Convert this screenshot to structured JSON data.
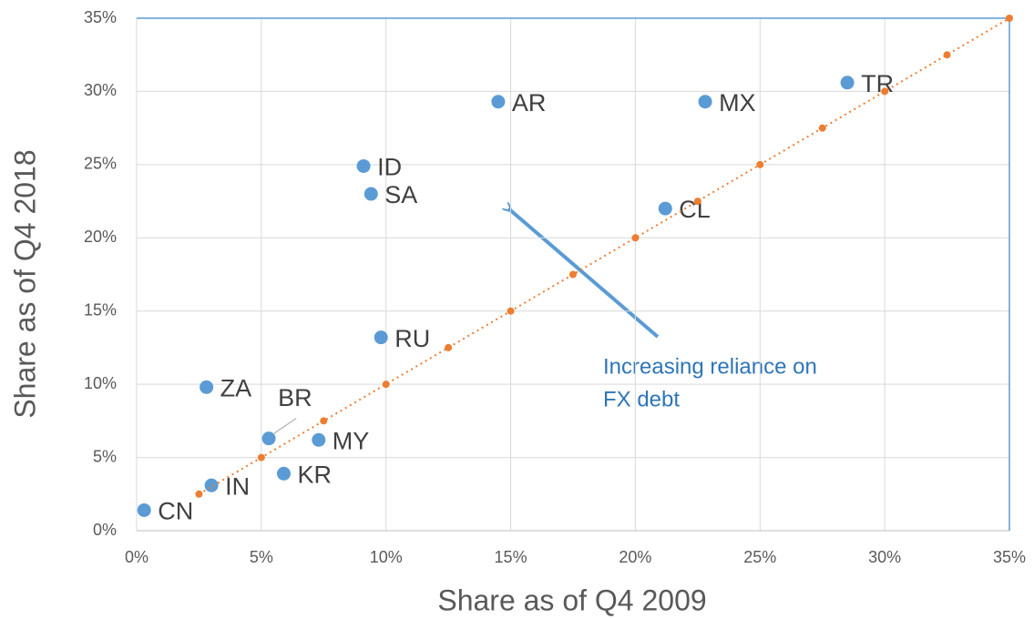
{
  "chart_data": {
    "type": "scatter",
    "xlabel": "Share as of Q4 2009",
    "ylabel": "Share as of Q4 2018",
    "xlim": [
      0,
      35
    ],
    "ylim": [
      0,
      35
    ],
    "xticks": [
      {
        "value": 0,
        "label": "0%"
      },
      {
        "value": 5,
        "label": "5%"
      },
      {
        "value": 10,
        "label": "10%"
      },
      {
        "value": 15,
        "label": "15%"
      },
      {
        "value": 20,
        "label": "20%"
      },
      {
        "value": 25,
        "label": "25%"
      },
      {
        "value": 30,
        "label": "30%"
      },
      {
        "value": 35,
        "label": "35%"
      }
    ],
    "yticks": [
      {
        "value": 0,
        "label": "0%"
      },
      {
        "value": 5,
        "label": "5%"
      },
      {
        "value": 10,
        "label": "10%"
      },
      {
        "value": 15,
        "label": "15%"
      },
      {
        "value": 20,
        "label": "20%"
      },
      {
        "value": 25,
        "label": "25%"
      },
      {
        "value": 30,
        "label": "30%"
      },
      {
        "value": 35,
        "label": "35%"
      }
    ],
    "grid": true,
    "series": [
      {
        "color": "#5b9bd5",
        "labels": [
          "CN",
          "IN",
          "ZA",
          "BR",
          "KR",
          "MY",
          "RU",
          "ID",
          "SA",
          "AR",
          "MX",
          "CL",
          "TR"
        ],
        "x": [
          0.3,
          3.0,
          2.8,
          5.3,
          5.9,
          7.3,
          9.8,
          9.1,
          9.4,
          14.5,
          22.8,
          21.2,
          28.5
        ],
        "values": [
          1.4,
          3.1,
          9.8,
          6.3,
          3.9,
          6.2,
          13.2,
          24.9,
          23.0,
          29.3,
          29.3,
          22.0,
          30.6
        ]
      },
      {
        "color": "#ed7d31",
        "line": "dotted",
        "x": [
          2.5,
          5,
          7.5,
          10,
          12.5,
          15,
          17.5,
          20,
          22.5,
          25,
          27.5,
          30,
          32.5,
          35
        ],
        "values": [
          2.5,
          5,
          7.5,
          10,
          12.5,
          15,
          17.5,
          20,
          22.5,
          25,
          27.5,
          30,
          32.5,
          35
        ]
      }
    ],
    "annotation": [
      "Increasing reliance on",
      "FX debt"
    ]
  }
}
